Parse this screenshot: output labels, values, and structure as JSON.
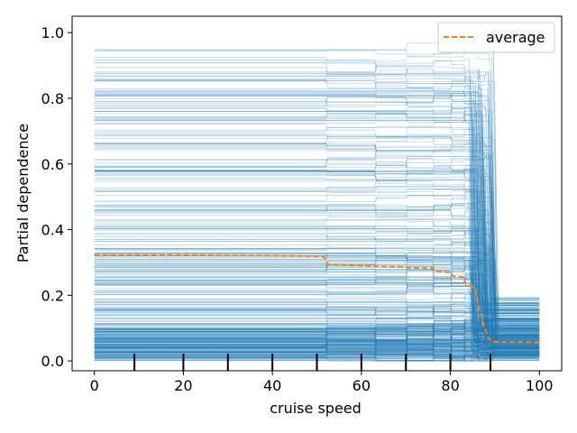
{
  "chart_data": {
    "type": "line",
    "xlabel": "cruise speed",
    "ylabel": "Partial dependence",
    "xlim": [
      -5,
      105
    ],
    "ylim": [
      -0.03,
      1.05
    ],
    "xticks": [
      0,
      20,
      40,
      60,
      80,
      100
    ],
    "yticks": [
      0.0,
      0.2,
      0.4,
      0.6,
      0.8,
      1.0
    ],
    "xtick_labels": [
      "0",
      "20",
      "40",
      "60",
      "80",
      "100"
    ],
    "ytick_labels": [
      "0.0",
      "0.2",
      "0.4",
      "0.6",
      "0.8",
      "1.0"
    ],
    "legend": {
      "position": "top-right",
      "entries": [
        "average"
      ]
    },
    "grid": false,
    "average": {
      "name": "average",
      "color": "#ff7f0e",
      "x": [
        0,
        10,
        20,
        30,
        40,
        50,
        51.5,
        52.5,
        60,
        63,
        63.5,
        70,
        70.5,
        76,
        76.5,
        80,
        80.5,
        83,
        83.5,
        85,
        85.5,
        86.5,
        87.5,
        88.5,
        89.5,
        95,
        100
      ],
      "y": [
        0.322,
        0.322,
        0.322,
        0.321,
        0.32,
        0.319,
        0.318,
        0.293,
        0.291,
        0.29,
        0.288,
        0.286,
        0.284,
        0.282,
        0.272,
        0.27,
        0.258,
        0.255,
        0.232,
        0.228,
        0.22,
        0.16,
        0.11,
        0.07,
        0.058,
        0.057,
        0.057
      ]
    },
    "ice_lines": {
      "color": "#1f77b4",
      "count": 420,
      "step_x": [
        52,
        63,
        70,
        76,
        80,
        83,
        86,
        87.5,
        89
      ]
    },
    "rug": {
      "color": "#000000",
      "x": [
        9,
        20,
        30,
        40,
        50,
        60,
        70,
        80,
        89
      ]
    }
  }
}
